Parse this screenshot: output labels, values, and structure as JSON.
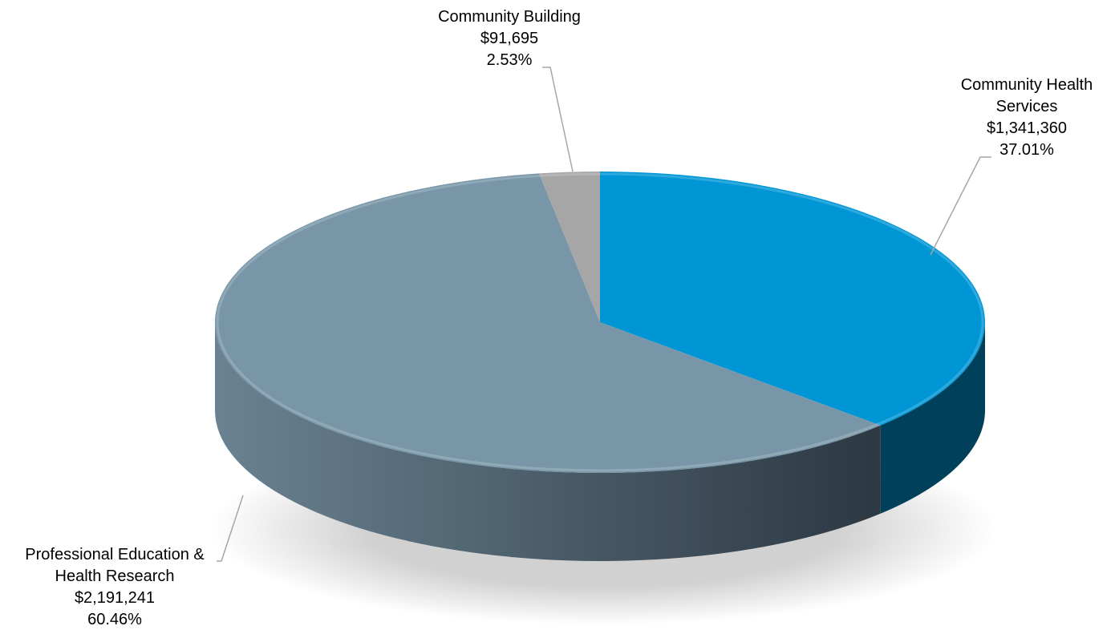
{
  "chart_data": {
    "type": "pie",
    "style": "3d",
    "start_angle_deg": 0,
    "direction": "clockwise",
    "slices": [
      {
        "key": "community_health_services",
        "label_lines": [
          "Community Health",
          "Services"
        ],
        "value": 1341360,
        "value_text": "$1,341,360",
        "percent": 37.01,
        "percent_text": "37.01%",
        "color": "#0096d6",
        "side_color": "#00405a"
      },
      {
        "key": "professional_education_health_research",
        "label_lines": [
          "Professional Education &",
          "Health Research"
        ],
        "value": 2191241,
        "value_text": "$2,191,241",
        "percent": 60.46,
        "percent_text": "60.46%",
        "color": "#7896a8",
        "side_color": "#465c6b"
      },
      {
        "key": "community_building",
        "label_lines": [
          "Community Building"
        ],
        "value": 91695,
        "value_text": "$91,695",
        "percent": 2.53,
        "percent_text": "2.53%",
        "color": "#a6a6a6",
        "side_color": "#6e6e6e"
      }
    ]
  }
}
